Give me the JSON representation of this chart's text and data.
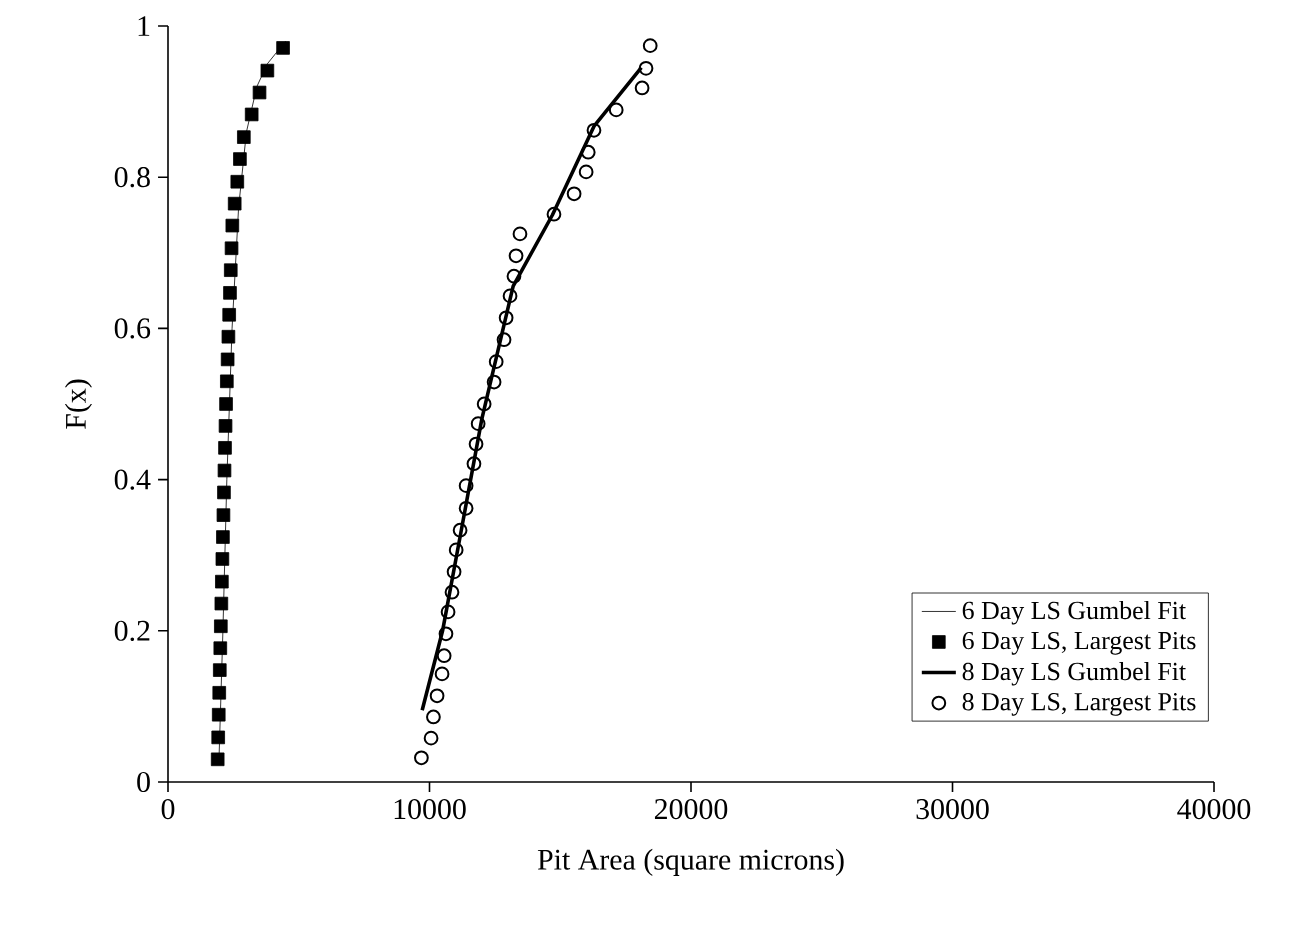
{
  "chart_data": {
    "type": "scatter",
    "xlabel": "Pit Area (square microns)",
    "ylabel": "F(x)",
    "xlim": [
      0,
      40000
    ],
    "xticks": [
      0,
      10000,
      20000,
      30000,
      40000
    ],
    "ylim": [
      0,
      1
    ],
    "yticks": [
      0,
      0.2,
      0.4,
      0.6,
      0.8,
      1
    ],
    "grid": false,
    "legend": "bottom right",
    "series": [
      {
        "name": "6 Day LS Gumbel Fit",
        "type": "line",
        "marker": "none",
        "line_style": "solid",
        "color": "#000000",
        "x": [
          1950,
          2100,
          2250,
          2450,
          2700,
          3000,
          3400,
          3800,
          4500
        ],
        "values": [
          0.03,
          0.2,
          0.4,
          0.6,
          0.76,
          0.86,
          0.92,
          0.95,
          0.98
        ]
      },
      {
        "name": "6 Day LS, Largest Pits",
        "marker": "square",
        "color": "#000000",
        "x": [
          1900,
          1920,
          1940,
          1960,
          1980,
          2000,
          2020,
          2040,
          2060,
          2080,
          2100,
          2120,
          2140,
          2160,
          2180,
          2200,
          2220,
          2250,
          2280,
          2310,
          2340,
          2370,
          2400,
          2430,
          2460,
          2550,
          2650,
          2750,
          2900,
          3200,
          3500,
          3800,
          4400
        ],
        "values": [
          0.03,
          0.059,
          0.089,
          0.118,
          0.148,
          0.177,
          0.206,
          0.236,
          0.265,
          0.295,
          0.324,
          0.353,
          0.383,
          0.412,
          0.442,
          0.471,
          0.5,
          0.53,
          0.559,
          0.589,
          0.618,
          0.647,
          0.677,
          0.706,
          0.736,
          0.765,
          0.794,
          0.824,
          0.853,
          0.883,
          0.912,
          0.941,
          0.971
        ]
      },
      {
        "name": "8 Day LS Gumbel Fit",
        "type": "line",
        "marker": "none",
        "line_style": "solid",
        "color": "#000000",
        "x": [
          9720,
          10500,
          11200,
          12000,
          13200,
          14700,
          16300,
          18100
        ],
        "values": [
          0.095,
          0.2,
          0.33,
          0.48,
          0.656,
          0.75,
          0.868,
          0.945
        ]
      },
      {
        "name": "8 Day LS, Largest Pits",
        "marker": "circle",
        "color": "#000000",
        "x": [
          9690,
          10060,
          10150,
          10290,
          10480,
          10560,
          10630,
          10710,
          10860,
          10940,
          11020,
          11170,
          11400,
          11400,
          11700,
          11780,
          11860,
          12090,
          12470,
          12550,
          12850,
          12930,
          13080,
          13230,
          13310,
          13460,
          14760,
          15530,
          15990,
          16070,
          16290,
          17140,
          18130,
          18280,
          18440
        ],
        "values": [
          0.032,
          0.058,
          0.086,
          0.114,
          0.143,
          0.167,
          0.196,
          0.225,
          0.251,
          0.278,
          0.307,
          0.333,
          0.362,
          0.392,
          0.421,
          0.447,
          0.474,
          0.5,
          0.529,
          0.556,
          0.585,
          0.614,
          0.643,
          0.669,
          0.696,
          0.725,
          0.751,
          0.778,
          0.807,
          0.833,
          0.862,
          0.889,
          0.918,
          0.944,
          0.974
        ]
      }
    ]
  }
}
